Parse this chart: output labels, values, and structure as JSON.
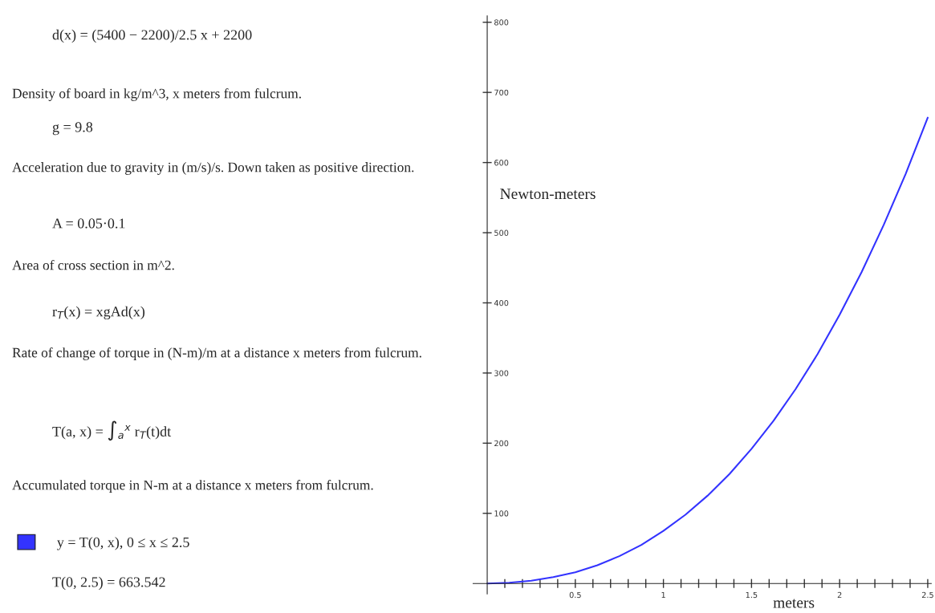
{
  "chart_data": {
    "type": "line",
    "xlabel": "meters",
    "ylabel": "Newton-meters",
    "x": [
      0,
      0.125,
      0.25,
      0.375,
      0.5,
      0.625,
      0.75,
      0.875,
      1,
      1.125,
      1.25,
      1.375,
      1.5,
      1.625,
      1.75,
      1.875,
      2,
      2.125,
      2.25,
      2.375,
      2.5
    ],
    "series": [
      {
        "name": "y = T(0, x), 0 ≤ x ≤ 2.5",
        "color": "#3333ff",
        "values": [
          0,
          1,
          4,
          9,
          16,
          26,
          39,
          55,
          75,
          98,
          125,
          156,
          192,
          232,
          277,
          327,
          383,
          444,
          511,
          584,
          664
        ]
      }
    ],
    "xlim": [
      -0.08,
      2.52
    ],
    "ylim": [
      -15,
      809
    ],
    "xticks": [
      {
        "value": 0.1,
        "label": null
      },
      {
        "value": 0.2,
        "label": null
      },
      {
        "value": 0.3,
        "label": null
      },
      {
        "value": 0.4,
        "label": null
      },
      0.5,
      {
        "value": 0.6,
        "label": null
      },
      {
        "value": 0.7,
        "label": null
      },
      {
        "value": 0.8,
        "label": null
      },
      {
        "value": 0.9,
        "label": null
      },
      1,
      {
        "value": 1.1,
        "label": null
      },
      {
        "value": 1.2,
        "label": null
      },
      {
        "value": 1.3,
        "label": null
      },
      {
        "value": 1.4,
        "label": null
      },
      1.5,
      {
        "value": 1.6,
        "label": null
      },
      {
        "value": 1.7,
        "label": null
      },
      {
        "value": 1.8,
        "label": null
      },
      {
        "value": 1.9,
        "label": null
      },
      2,
      {
        "value": 2.1,
        "label": null
      },
      {
        "value": 2.2,
        "label": null
      },
      {
        "value": 2.3,
        "label": null
      },
      {
        "value": 2.4,
        "label": null
      },
      2.5
    ],
    "yticks": [
      100,
      200,
      300,
      400,
      500,
      600,
      700,
      800
    ],
    "grid": false,
    "legend": "left",
    "marker": "none",
    "line_style": "solid",
    "annotations": [
      "d(x) = (5400 − 2200)/2.5 x + 2200",
      "Density of board in kg/m^3, x meters from fulcrum.",
      "g = 9.8",
      "Acceleration due to gravity in (m/s)/s. Down taken as positive direction.",
      "A = 0.05·0.1",
      "Area of cross section in m^2.",
      "r$_{T}$(x) = xgAd(x)",
      "Rate of change of torque in (N-m)/m at a distance x meters from fulcrum.",
      "T(a, x) = ∫$_{a}$$^{x}$ r$_{T}$(t)dt",
      "Accumulated torque in N-m at a distance x meters from fulcrum.",
      "T(0, 2.5) = 663.542"
    ]
  }
}
